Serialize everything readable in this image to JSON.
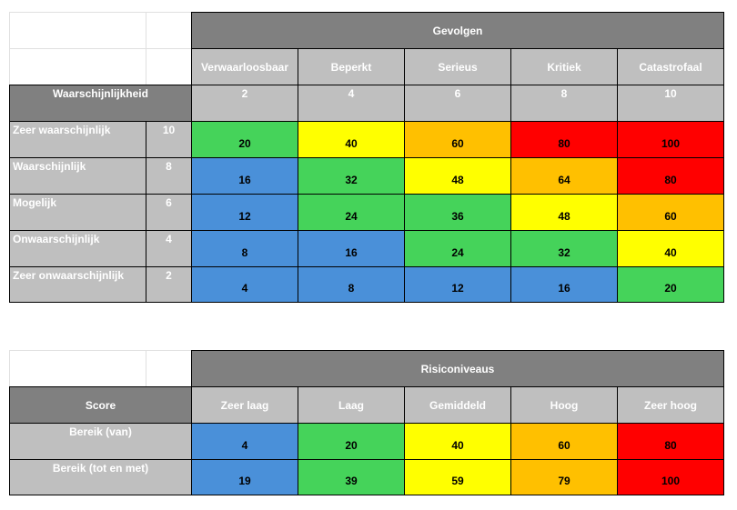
{
  "colors": {
    "blue": "#4a90d9",
    "green": "#45d35a",
    "yellow": "#ffff00",
    "orange": "#ffc000",
    "red": "#ff0000",
    "header_dark": "#808080",
    "header_light": "#bfbfbf"
  },
  "matrix": {
    "title": "Gevolgen",
    "row_header": "Waarschijnlijkheid",
    "consequences": [
      {
        "label": "Verwaarloosbaar",
        "value": "2"
      },
      {
        "label": "Beperkt",
        "value": "4"
      },
      {
        "label": "Serieus",
        "value": "6"
      },
      {
        "label": "Kritiek",
        "value": "8"
      },
      {
        "label": "Catastrofaal",
        "value": "10"
      }
    ],
    "rows": [
      {
        "label": "Zeer waarschijnlijk",
        "value": "10",
        "cells": [
          {
            "v": "20",
            "c": "green"
          },
          {
            "v": "40",
            "c": "yellow"
          },
          {
            "v": "60",
            "c": "orange"
          },
          {
            "v": "80",
            "c": "red"
          },
          {
            "v": "100",
            "c": "red"
          }
        ]
      },
      {
        "label": "Waarschijnlijk",
        "value": "8",
        "cells": [
          {
            "v": "16",
            "c": "blue"
          },
          {
            "v": "32",
            "c": "green"
          },
          {
            "v": "48",
            "c": "yellow"
          },
          {
            "v": "64",
            "c": "orange"
          },
          {
            "v": "80",
            "c": "red"
          }
        ]
      },
      {
        "label": "Mogelijk",
        "value": "6",
        "cells": [
          {
            "v": "12",
            "c": "blue"
          },
          {
            "v": "24",
            "c": "green"
          },
          {
            "v": "36",
            "c": "green"
          },
          {
            "v": "48",
            "c": "yellow"
          },
          {
            "v": "60",
            "c": "orange"
          }
        ]
      },
      {
        "label": "Onwaarschijnlijk",
        "value": "4",
        "cells": [
          {
            "v": "8",
            "c": "blue"
          },
          {
            "v": "16",
            "c": "blue"
          },
          {
            "v": "24",
            "c": "green"
          },
          {
            "v": "32",
            "c": "green"
          },
          {
            "v": "40",
            "c": "yellow"
          }
        ]
      },
      {
        "label": "Zeer onwaarschijnlijk",
        "value": "2",
        "cells": [
          {
            "v": "4",
            "c": "blue"
          },
          {
            "v": "8",
            "c": "blue"
          },
          {
            "v": "12",
            "c": "blue"
          },
          {
            "v": "16",
            "c": "blue"
          },
          {
            "v": "20",
            "c": "green"
          }
        ]
      }
    ]
  },
  "levels": {
    "title": "Risiconiveaus",
    "row_header": "Score",
    "names": [
      "Zeer laag",
      "Laag",
      "Gemiddeld",
      "Hoog",
      "Zeer hoog"
    ],
    "rows": [
      {
        "label": "Bereik (van)",
        "cells": [
          {
            "v": "4",
            "c": "blue"
          },
          {
            "v": "20",
            "c": "green"
          },
          {
            "v": "40",
            "c": "yellow"
          },
          {
            "v": "60",
            "c": "orange"
          },
          {
            "v": "80",
            "c": "red"
          }
        ]
      },
      {
        "label": "Bereik (tot en met)",
        "cells": [
          {
            "v": "19",
            "c": "blue"
          },
          {
            "v": "39",
            "c": "green"
          },
          {
            "v": "59",
            "c": "yellow"
          },
          {
            "v": "79",
            "c": "orange"
          },
          {
            "v": "100",
            "c": "red"
          }
        ]
      }
    ]
  }
}
